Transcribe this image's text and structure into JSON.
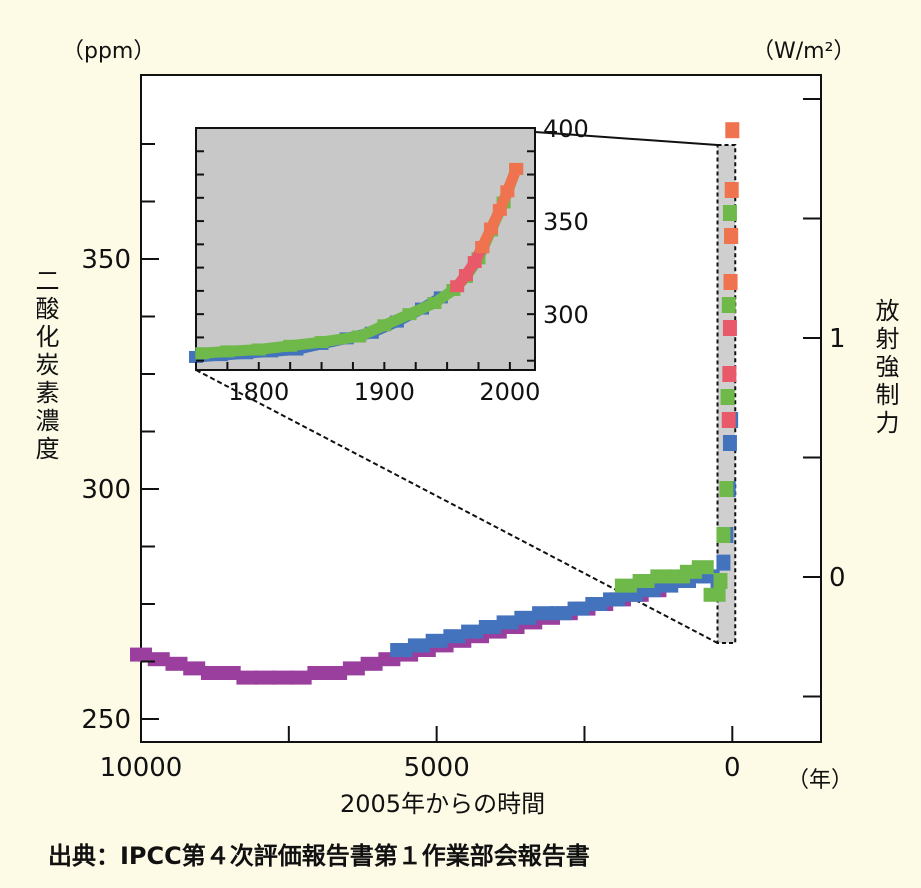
{
  "chart_data": {
    "type": "scatter",
    "main": {
      "xlabel": "2005年からの時間",
      "x_unit": "（年）",
      "x_ticks": [
        "10000",
        "5000",
        "0"
      ],
      "x_tick_values": [
        10000,
        5000,
        0
      ],
      "xlim": [
        10000,
        -1500
      ],
      "ylabel_left": "二酸化炭素濃度",
      "ylabel_left_unit": "（ppm）",
      "y_left_ticks": [
        "350",
        "300",
        "250"
      ],
      "y_left_tick_values": [
        350,
        300,
        250
      ],
      "ylim_left": [
        245,
        390
      ],
      "ylabel_right": "放射強制力",
      "ylabel_right_unit": "（W/m²）",
      "y_right_ticks": [
        "1",
        "0"
      ],
      "y_right_tick_values": [
        1,
        0
      ],
      "series": [
        {
          "color": "#9b3f9e",
          "points": [
            [
              10000,
              264
            ],
            [
              9700,
              263
            ],
            [
              9400,
              262
            ],
            [
              9100,
              261
            ],
            [
              8800,
              260
            ],
            [
              8500,
              260
            ],
            [
              8200,
              259
            ],
            [
              7900,
              259
            ],
            [
              7600,
              259
            ],
            [
              7300,
              259
            ],
            [
              7000,
              260
            ],
            [
              6700,
              260
            ],
            [
              6400,
              261
            ],
            [
              6100,
              262
            ],
            [
              5800,
              263
            ],
            [
              5500,
              264
            ],
            [
              5200,
              265
            ],
            [
              4900,
              266
            ],
            [
              4600,
              267
            ],
            [
              4300,
              268
            ],
            [
              4000,
              269
            ],
            [
              3700,
              270
            ],
            [
              3400,
              271
            ],
            [
              3100,
              272
            ],
            [
              2800,
              273
            ],
            [
              2500,
              274
            ],
            [
              2200,
              275
            ],
            [
              1900,
              276
            ],
            [
              1600,
              277
            ],
            [
              1300,
              278
            ]
          ]
        },
        {
          "color": "#4473bd",
          "points": [
            [
              5600,
              265
            ],
            [
              5300,
              266
            ],
            [
              5000,
              267
            ],
            [
              4700,
              268
            ],
            [
              4400,
              269
            ],
            [
              4100,
              270
            ],
            [
              3800,
              271
            ],
            [
              3500,
              272
            ],
            [
              3200,
              273
            ],
            [
              2900,
              273
            ],
            [
              2600,
              274
            ],
            [
              2300,
              275
            ],
            [
              2000,
              276
            ],
            [
              1700,
              277
            ],
            [
              1400,
              278
            ],
            [
              1100,
              279
            ],
            [
              800,
              280
            ],
            [
              600,
              281
            ],
            [
              400,
              281
            ],
            [
              250,
              280
            ],
            [
              150,
              284
            ],
            [
              100,
              290
            ],
            [
              60,
              300
            ],
            [
              40,
              310
            ],
            [
              20,
              315
            ]
          ]
        },
        {
          "color": "#6fb84a",
          "points": [
            [
              1800,
              279
            ],
            [
              1500,
              280
            ],
            [
              1200,
              281
            ],
            [
              900,
              281
            ],
            [
              700,
              282
            ],
            [
              500,
              283
            ],
            [
              300,
              277
            ],
            [
              200,
              280
            ],
            [
              150,
              290
            ],
            [
              100,
              300
            ],
            [
              80,
              320
            ],
            [
              60,
              340
            ],
            [
              40,
              360
            ],
            [
              20,
              355
            ]
          ]
        },
        {
          "color": "#e85a6a",
          "points": [
            [
              60,
              315
            ],
            [
              50,
              325
            ],
            [
              40,
              335
            ],
            [
              30,
              345
            ]
          ]
        },
        {
          "color": "#f07350",
          "points": [
            [
              30,
              345
            ],
            [
              20,
              355
            ],
            [
              10,
              365
            ],
            [
              0,
              378
            ]
          ]
        }
      ]
    },
    "inset": {
      "x_ticks": [
        "1800",
        "1900",
        "2000"
      ],
      "x_tick_values": [
        1800,
        1900,
        2000
      ],
      "xlim": [
        1750,
        2020
      ],
      "y_ticks": [
        "400",
        "350",
        "300"
      ],
      "y_tick_values": [
        400,
        350,
        300
      ],
      "ylim": [
        270,
        400
      ],
      "background": "#c8c8c8",
      "series": [
        {
          "color": "#4473bd",
          "points": [
            [
              1750,
              277
            ],
            [
              1770,
              278
            ],
            [
              1790,
              279
            ],
            [
              1810,
              280
            ],
            [
              1830,
              281
            ],
            [
              1850,
              284
            ],
            [
              1870,
              287
            ],
            [
              1890,
              290
            ],
            [
              1910,
              296
            ],
            [
              1930,
              303
            ],
            [
              1945,
              309
            ]
          ]
        },
        {
          "color": "#6fb84a",
          "points": [
            [
              1755,
              279
            ],
            [
              1775,
              280
            ],
            [
              1800,
              281
            ],
            [
              1825,
              283
            ],
            [
              1850,
              285
            ],
            [
              1880,
              288
            ],
            [
              1900,
              294
            ],
            [
              1920,
              300
            ],
            [
              1940,
              306
            ],
            [
              1955,
              313
            ],
            [
              1965,
              320
            ],
            [
              1975,
              330
            ],
            [
              1985,
              345
            ],
            [
              1995,
              360
            ],
            [
              2005,
              378
            ]
          ]
        },
        {
          "color": "#e85a6a",
          "points": [
            [
              1958,
              315
            ],
            [
              1965,
              321
            ],
            [
              1972,
              328
            ],
            [
              1978,
              336
            ]
          ]
        },
        {
          "color": "#f07350",
          "points": [
            [
              1978,
              336
            ],
            [
              1985,
              346
            ],
            [
              1992,
              356
            ],
            [
              1998,
              366
            ],
            [
              2005,
              378
            ]
          ]
        }
      ]
    }
  },
  "source": "出典：IPCC第４次評価報告書第１作業部会報告書"
}
